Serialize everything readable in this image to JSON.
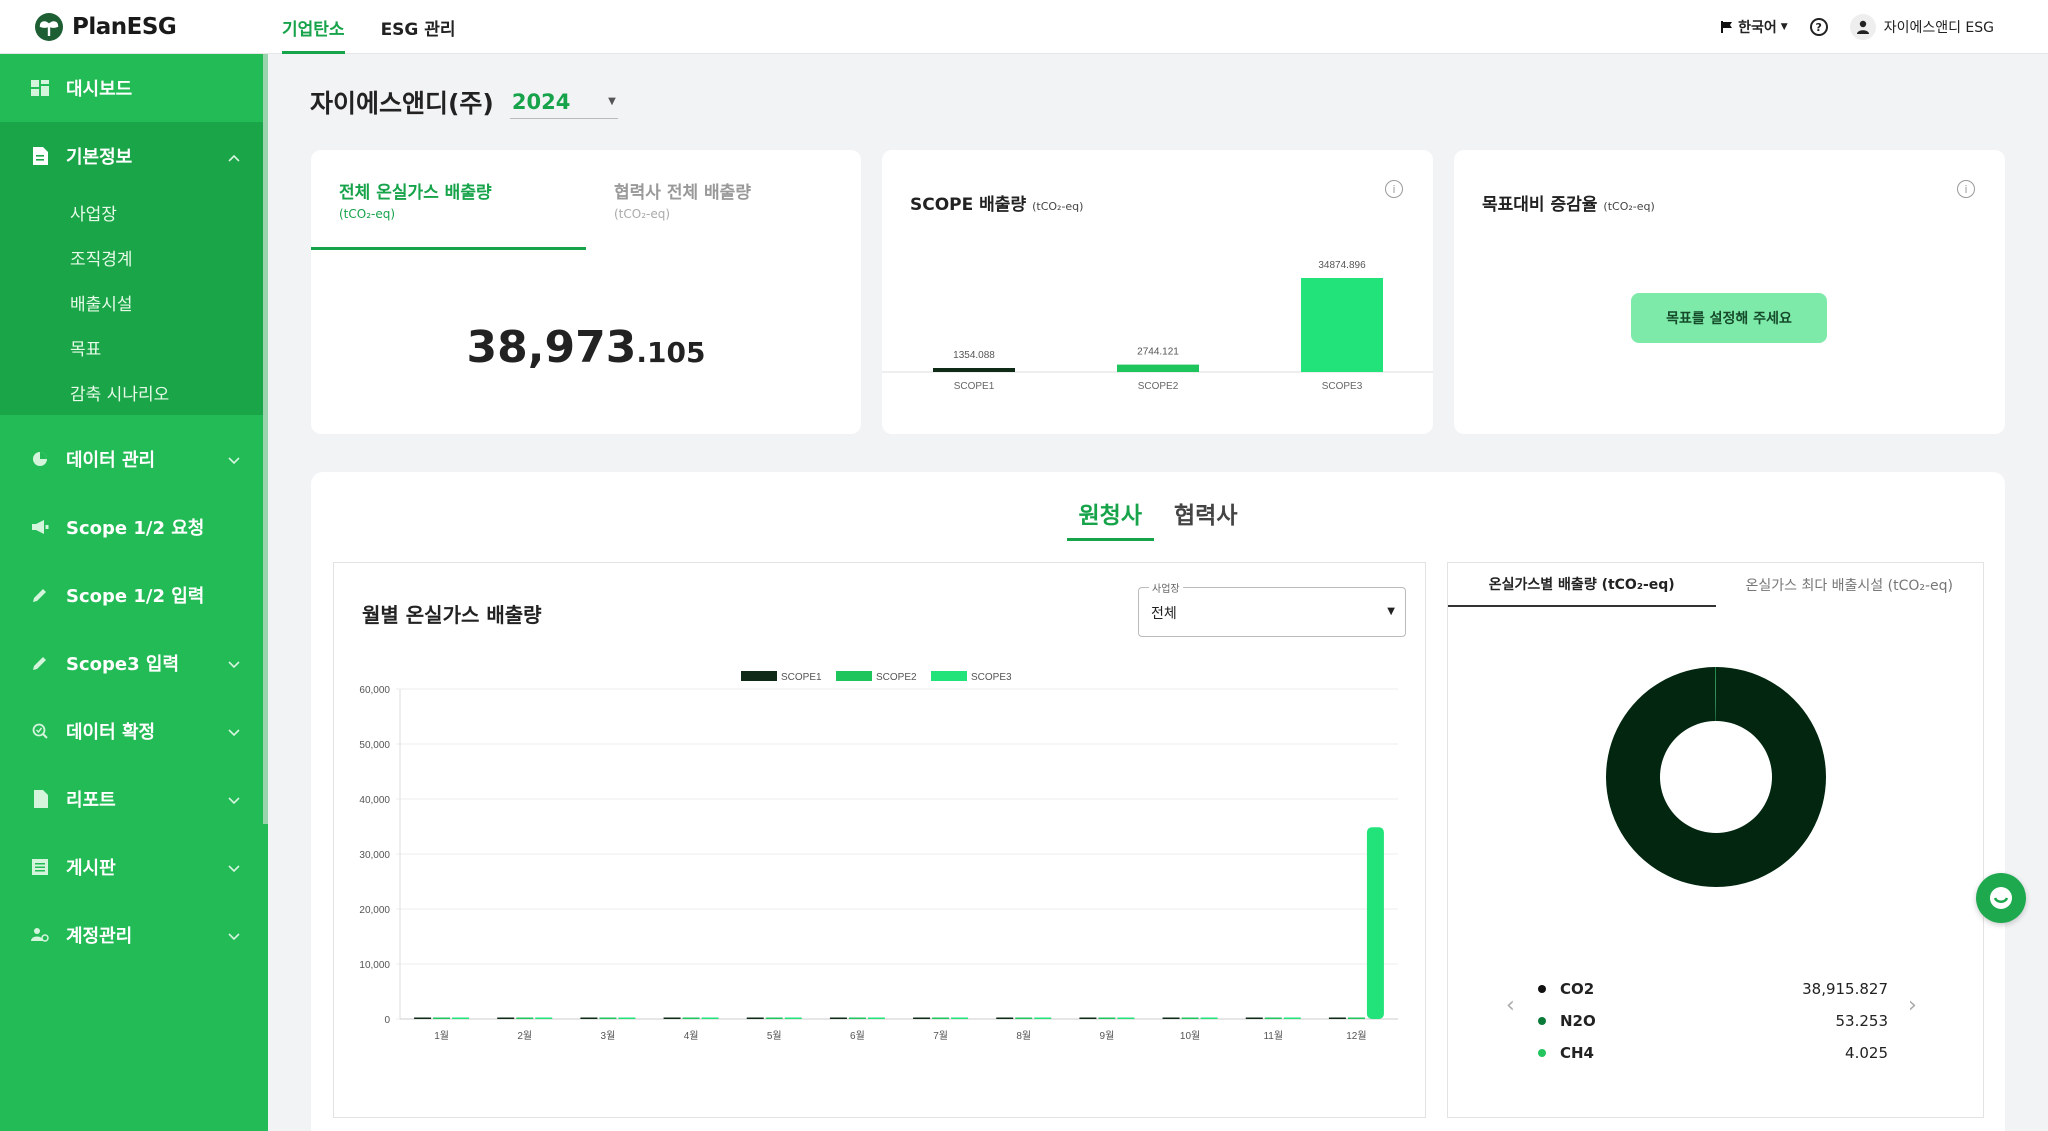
{
  "brand": {
    "name": "PlanESG",
    "primary": "#22bb55",
    "accent": "#16a34a"
  },
  "topnav": [
    {
      "label": "기업탄소",
      "active": true
    },
    {
      "label": "ESG 관리",
      "active": false
    }
  ],
  "header": {
    "language": "한국어",
    "user": "자이에스앤디 ESG"
  },
  "sidebar": {
    "items": [
      {
        "label": "대시보드",
        "icon": "dashboard-icon"
      },
      {
        "label": "기본정보",
        "icon": "document-icon",
        "expanded": true,
        "children": [
          "사업장",
          "조직경계",
          "배출시설",
          "목표",
          "감축 시나리오"
        ]
      },
      {
        "label": "데이터 관리",
        "icon": "pie-icon"
      },
      {
        "label": "Scope 1/2 요청",
        "icon": "megaphone-icon"
      },
      {
        "label": "Scope 1/2 입력",
        "icon": "pencil-icon"
      },
      {
        "label": "Scope3 입력",
        "icon": "pencil-icon"
      },
      {
        "label": "데이터 확정",
        "icon": "check-search-icon"
      },
      {
        "label": "리포트",
        "icon": "file-icon"
      },
      {
        "label": "게시판",
        "icon": "board-icon"
      },
      {
        "label": "계정관리",
        "icon": "account-icon"
      }
    ]
  },
  "company": {
    "name": "자이에스앤디(주)",
    "year": "2024"
  },
  "total_card": {
    "tabs": [
      {
        "title": "전체 온실가스 배출량",
        "unit": "(tCO₂-eq)"
      },
      {
        "title": "협력사 전체 배출량",
        "unit": "(tCO₂-eq)"
      }
    ],
    "value_int": "38,973",
    "value_dec": ".105"
  },
  "scope_card": {
    "title": "SCOPE 배출량",
    "unit": "(tCO₂-eq)",
    "chart_data": {
      "type": "bar",
      "categories": [
        "SCOPE1",
        "SCOPE2",
        "SCOPE3"
      ],
      "values": [
        1354.088,
        2744.121,
        34874.896
      ],
      "value_labels": [
        "1354.088",
        "2744.121",
        "34874.896"
      ],
      "colors": [
        "#0f2b18",
        "#1ec45c",
        "#22e37a"
      ]
    }
  },
  "target_card": {
    "title": "목표대비 증감율",
    "unit": "(tCO₂-eq)",
    "button": "목표를 설정해 주세요"
  },
  "segment_tabs": [
    "원청사",
    "협력사"
  ],
  "monthly_chart": {
    "title": "월별 온실가스 배출량",
    "site_label": "사업장",
    "site_value": "전체",
    "chart_data": {
      "type": "bar",
      "categories": [
        "1월",
        "2월",
        "3월",
        "4월",
        "5월",
        "6월",
        "7월",
        "8월",
        "9월",
        "10월",
        "11월",
        "12월"
      ],
      "series": [
        {
          "name": "SCOPE1",
          "color": "#0f2b18",
          "values": [
            113,
            113,
            113,
            113,
            113,
            113,
            113,
            113,
            113,
            113,
            113,
            111
          ]
        },
        {
          "name": "SCOPE2",
          "color": "#1ec45c",
          "values": [
            229,
            229,
            229,
            229,
            229,
            229,
            229,
            229,
            229,
            229,
            229,
            224
          ]
        },
        {
          "name": "SCOPE3",
          "color": "#22e37a",
          "values": [
            0,
            0,
            0,
            0,
            0,
            0,
            0,
            0,
            0,
            0,
            0,
            34874.896
          ]
        }
      ],
      "yticks": [
        "0",
        "10,000",
        "20,000",
        "30,000",
        "40,000",
        "50,000",
        "60,000"
      ],
      "ylim": [
        0,
        60000
      ],
      "legend": "top-center",
      "grid": true
    }
  },
  "gas_panel": {
    "tabs": [
      "온실가스별 배출량 (tCO₂-eq)",
      "온실가스 최다 배출시설 (tCO₂-eq)"
    ],
    "chart_data": {
      "type": "pie",
      "labels": [
        "CO2",
        "N2O",
        "CH4"
      ],
      "values": [
        38915.827,
        53.253,
        4.025
      ],
      "value_labels": [
        "38,915.827",
        "53.253",
        "4.025"
      ],
      "colors": [
        "#02260f",
        "#0b7a39",
        "#22c55e"
      ]
    }
  }
}
